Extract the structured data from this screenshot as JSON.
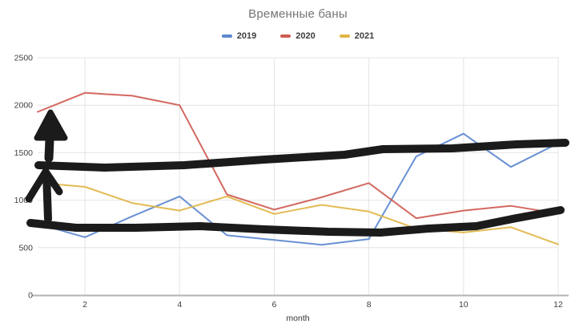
{
  "chart_data": {
    "type": "line",
    "title": "Временные баны",
    "title_color": "#757575",
    "xlabel": "month",
    "x": [
      1,
      2,
      3,
      4,
      5,
      6,
      7,
      8,
      9,
      10,
      11,
      12
    ],
    "xticks": [
      2,
      4,
      6,
      8,
      10,
      12
    ],
    "yticks": [
      0,
      500,
      1000,
      1500,
      2000,
      2500
    ],
    "xlim": [
      1,
      12
    ],
    "ylim": [
      0,
      2500
    ],
    "grid": true,
    "legend_position": "top",
    "series": [
      {
        "name": "2019",
        "color": "#5b87cf",
        "values": [
          750,
          610,
          830,
          1040,
          630,
          580,
          530,
          590,
          1460,
          1700,
          1350,
          1600
        ]
      },
      {
        "name": "2020",
        "color": "#cf5b52",
        "values": [
          1930,
          2130,
          2100,
          2000,
          1060,
          900,
          1030,
          1180,
          810,
          890,
          940,
          860
        ]
      },
      {
        "name": "2021",
        "color": "#e0b545",
        "values": [
          1185,
          1140,
          970,
          890,
          1040,
          855,
          950,
          880,
          700,
          660,
          715,
          535
        ]
      }
    ],
    "axis_style": {
      "grid_color": "#e4e4e4",
      "baseline_color": "#b3b3b3",
      "tick_label_color": "#3f3f3f"
    },
    "annotations": {
      "description": "hand-drawn black marker strokes over the chart",
      "color": "#1b1b1b",
      "items": [
        {
          "name": "hand-drawn-line-upper",
          "kind": "stroke",
          "width": 10,
          "points": [
            [
              48,
              206
            ],
            [
              130,
              209
            ],
            [
              230,
              206
            ],
            [
              330,
              199
            ],
            [
              430,
              193
            ],
            [
              478,
              186
            ],
            [
              565,
              185
            ],
            [
              645,
              180
            ],
            [
              706,
              178
            ]
          ]
        },
        {
          "name": "hand-drawn-line-lower",
          "kind": "stroke",
          "width": 10,
          "points": [
            [
              38,
              278
            ],
            [
              95,
              284
            ],
            [
              170,
              284
            ],
            [
              250,
              282
            ],
            [
              330,
              286
            ],
            [
              410,
              289
            ],
            [
              475,
              290
            ],
            [
              535,
              285
            ],
            [
              595,
              282
            ],
            [
              645,
              272
            ],
            [
              700,
              262
            ]
          ]
        },
        {
          "name": "up-arrow-shaft-1",
          "kind": "stroke",
          "width": 11,
          "points": [
            [
              61,
              197
            ],
            [
              63,
              152
            ]
          ]
        },
        {
          "name": "up-arrow-head-1",
          "kind": "filled",
          "width": 7,
          "points": [
            [
              46,
              172
            ],
            [
              63,
              140
            ],
            [
              81,
              172
            ]
          ]
        },
        {
          "name": "up-arrow-shaft-2",
          "kind": "stroke",
          "width": 10,
          "points": [
            [
              60,
              273
            ],
            [
              59,
              245
            ],
            [
              58,
              218
            ]
          ]
        },
        {
          "name": "up-arrow-head-2",
          "kind": "stroke",
          "width": 9,
          "points": [
            [
              36,
              248
            ],
            [
              57,
              214
            ],
            [
              74,
              239
            ]
          ]
        }
      ]
    }
  }
}
